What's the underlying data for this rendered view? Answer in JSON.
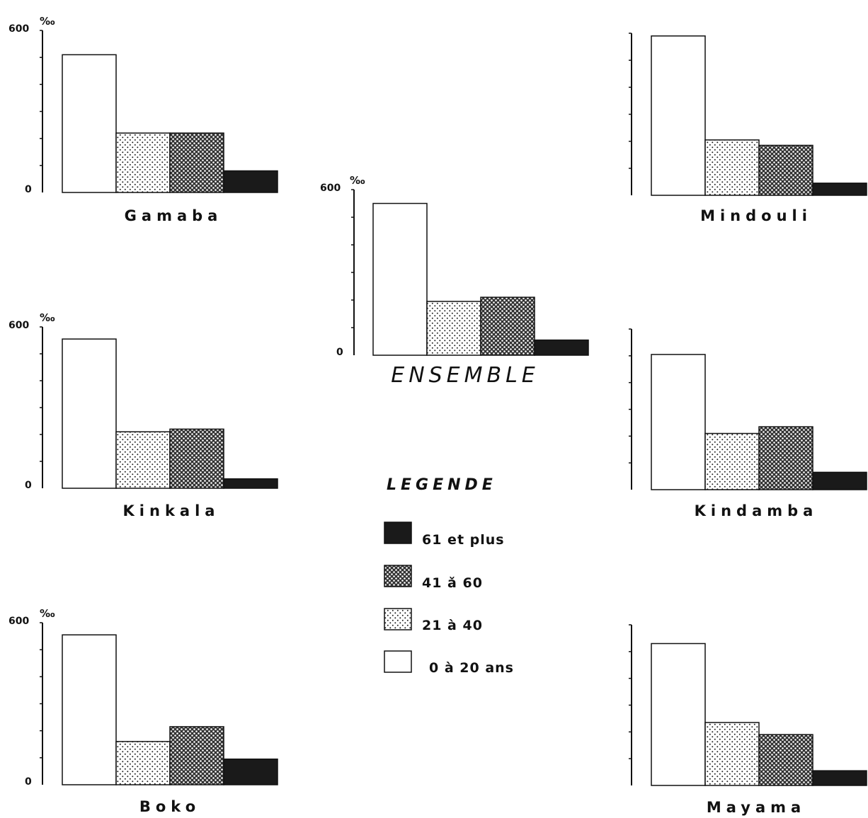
{
  "chart_data": [
    {
      "type": "bar",
      "title": "Gamaba",
      "categories": [
        "0 à 20 ans",
        "21 à 40",
        "41 à 60",
        "61 et plus"
      ],
      "values": [
        510,
        220,
        220,
        80
      ],
      "ylim": [
        0,
        600
      ],
      "ytick_labels": [
        "600",
        "0"
      ],
      "unit": "‰",
      "ylabel_ticks": true
    },
    {
      "type": "bar",
      "title": "Mindouli",
      "categories": [
        "0 à 20 ans",
        "21 à 40",
        "41 à 60",
        "61 et plus"
      ],
      "values": [
        590,
        205,
        185,
        45
      ],
      "ylim": [
        0,
        600
      ],
      "ytick_labels": [],
      "unit": ""
    },
    {
      "type": "bar",
      "title": "ENSEMBLE",
      "categories": [
        "0 à 20 ans",
        "21 à 40",
        "41 à 60",
        "61 et plus"
      ],
      "values": [
        550,
        195,
        210,
        55
      ],
      "ylim": [
        0,
        600
      ],
      "ytick_labels": [
        "600",
        "0"
      ],
      "unit": "‰"
    },
    {
      "type": "bar",
      "title": "Kinkala",
      "categories": [
        "0 à 20 ans",
        "21 à 40",
        "41 à 60",
        "61 et plus"
      ],
      "values": [
        555,
        210,
        220,
        35
      ],
      "ylim": [
        0,
        600
      ],
      "ytick_labels": [
        "600",
        "0"
      ],
      "unit": "‰"
    },
    {
      "type": "bar",
      "title": "Kindamba",
      "categories": [
        "0 à 20 ans",
        "21 à 40",
        "41 à 60",
        "61 et plus"
      ],
      "values": [
        505,
        210,
        235,
        65
      ],
      "ylim": [
        0,
        600
      ],
      "ytick_labels": [],
      "unit": ""
    },
    {
      "type": "bar",
      "title": "Boko",
      "categories": [
        "0 à 20 ans",
        "21 à 40",
        "41 à 60",
        "61 et plus"
      ],
      "values": [
        555,
        160,
        215,
        95
      ],
      "ylim": [
        0,
        600
      ],
      "ytick_labels": [
        "600",
        "0"
      ],
      "unit": "‰"
    },
    {
      "type": "bar",
      "title": "Mayama",
      "categories": [
        "0 à 20 ans",
        "21 à 40",
        "41 à 60",
        "61 et plus"
      ],
      "values": [
        530,
        235,
        190,
        55
      ],
      "ylim": [
        0,
        600
      ],
      "ytick_labels": [],
      "unit": ""
    }
  ],
  "legend": {
    "title": "LEGENDE",
    "items": [
      {
        "label": "61 et plus",
        "pattern": "solid-dark"
      },
      {
        "label": "41 ǎ 60",
        "pattern": "dense-dots"
      },
      {
        "label": "21 à 40",
        "pattern": "light-dots"
      },
      {
        "label": "0 à 20 ans",
        "pattern": "empty"
      }
    ]
  },
  "colors": {
    "ink": "#111111",
    "paper": "#ffffff",
    "dark_fill": "#1a1a1a"
  }
}
